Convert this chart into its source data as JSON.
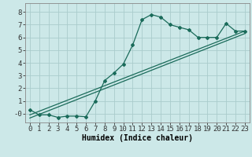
{
  "xlabel": "Humidex (Indice chaleur)",
  "bg_color": "#cce8e8",
  "grid_color": "#aacccc",
  "line_color": "#1a6b5a",
  "xlim": [
    -0.5,
    23.5
  ],
  "ylim": [
    -0.7,
    8.7
  ],
  "xticks": [
    0,
    1,
    2,
    3,
    4,
    5,
    6,
    7,
    8,
    9,
    10,
    11,
    12,
    13,
    14,
    15,
    16,
    17,
    18,
    19,
    20,
    21,
    22,
    23
  ],
  "yticks": [
    0,
    1,
    2,
    3,
    4,
    5,
    6,
    7,
    8
  ],
  "ytick_labels": [
    "-0",
    "1",
    "2",
    "3",
    "4",
    "5",
    "6",
    "7",
    "8"
  ],
  "line1_x": [
    0,
    1,
    2,
    3,
    4,
    5,
    6,
    7,
    8,
    9,
    10,
    11,
    12,
    13,
    14,
    15,
    16,
    17,
    18,
    19,
    20,
    21,
    22,
    23
  ],
  "line1_y": [
    0.3,
    -0.1,
    -0.1,
    -0.3,
    -0.2,
    -0.2,
    -0.25,
    1.0,
    2.6,
    3.2,
    3.9,
    5.4,
    7.4,
    7.8,
    7.6,
    7.0,
    6.8,
    6.6,
    6.0,
    6.0,
    6.0,
    7.1,
    6.5,
    6.5
  ],
  "line2_x": [
    0,
    23
  ],
  "line2_y": [
    -0.1,
    6.5
  ],
  "line3_x": [
    0,
    23
  ],
  "line3_y": [
    -0.35,
    6.3
  ],
  "marker": "D",
  "marker_size": 2.0,
  "line_width": 0.9,
  "xlabel_fontsize": 7,
  "tick_fontsize": 6.5
}
